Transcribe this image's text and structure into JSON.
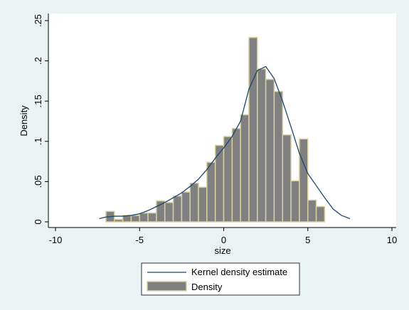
{
  "chart_data": {
    "type": "bar",
    "title": "",
    "xlabel": "size",
    "ylabel": "Density",
    "xlim": [
      -10,
      10
    ],
    "ylim": [
      0,
      0.25
    ],
    "x_ticks": [
      -10,
      -5,
      0,
      5,
      10
    ],
    "x_tick_labels": [
      "-10",
      "-5",
      "0",
      "5",
      "10"
    ],
    "y_ticks": [
      0,
      0.05,
      0.1,
      0.15,
      0.2,
      0.25
    ],
    "y_tick_labels": [
      "0",
      ".05",
      ".1",
      ".15",
      ".2",
      ".25"
    ],
    "grid": false,
    "legend_position": "bottom",
    "bar_fill": "#808080",
    "bar_edge": "#d8d0a0",
    "line_color": "#1a476f",
    "series": [
      {
        "name": "Density",
        "type": "histogram",
        "bin_width": 0.5,
        "bins": [
          {
            "x0": -7.0,
            "y": 0.013
          },
          {
            "x0": -6.5,
            "y": 0.003
          },
          {
            "x0": -6.0,
            "y": 0.008
          },
          {
            "x0": -5.5,
            "y": 0.008
          },
          {
            "x0": -5.0,
            "y": 0.011
          },
          {
            "x0": -4.5,
            "y": 0.011
          },
          {
            "x0": -4.0,
            "y": 0.026
          },
          {
            "x0": -3.5,
            "y": 0.024
          },
          {
            "x0": -3.0,
            "y": 0.032
          },
          {
            "x0": -2.5,
            "y": 0.037
          },
          {
            "x0": -2.0,
            "y": 0.048
          },
          {
            "x0": -1.5,
            "y": 0.043
          },
          {
            "x0": -1.0,
            "y": 0.074
          },
          {
            "x0": -0.5,
            "y": 0.095
          },
          {
            "x0": 0.0,
            "y": 0.106
          },
          {
            "x0": 0.5,
            "y": 0.116
          },
          {
            "x0": 1.0,
            "y": 0.133
          },
          {
            "x0": 1.5,
            "y": 0.229
          },
          {
            "x0": 2.0,
            "y": 0.19
          },
          {
            "x0": 2.5,
            "y": 0.177
          },
          {
            "x0": 3.0,
            "y": 0.162
          },
          {
            "x0": 3.5,
            "y": 0.108
          },
          {
            "x0": 4.0,
            "y": 0.051
          },
          {
            "x0": 4.5,
            "y": 0.103
          },
          {
            "x0": 5.0,
            "y": 0.027
          },
          {
            "x0": 5.5,
            "y": 0.019
          }
        ]
      },
      {
        "name": "Kernel density estimate",
        "type": "line",
        "x": [
          -7.4,
          -7.0,
          -6.5,
          -6.0,
          -5.5,
          -5.0,
          -4.5,
          -4.0,
          -3.5,
          -3.0,
          -2.5,
          -2.0,
          -1.5,
          -1.0,
          -0.5,
          0.0,
          0.5,
          1.0,
          1.5,
          2.0,
          2.5,
          3.0,
          3.5,
          4.0,
          4.5,
          5.0,
          5.5,
          6.0,
          6.5,
          7.0,
          7.5
        ],
        "y": [
          0.004,
          0.006,
          0.007,
          0.007,
          0.008,
          0.01,
          0.014,
          0.019,
          0.024,
          0.03,
          0.036,
          0.044,
          0.053,
          0.065,
          0.079,
          0.092,
          0.106,
          0.125,
          0.165,
          0.188,
          0.193,
          0.178,
          0.15,
          0.118,
          0.085,
          0.06,
          0.045,
          0.03,
          0.016,
          0.008,
          0.004
        ]
      }
    ]
  }
}
